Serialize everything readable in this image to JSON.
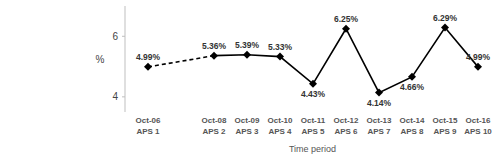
{
  "chart_data": {
    "type": "line",
    "x_label": "Time period",
    "y_label": "%",
    "categories": [
      "Oct-06\nAPS 1",
      null,
      "Oct-08\nAPS 2",
      "Oct-09\nAPS 3",
      "Oct-10\nAPS 4",
      "Oct-11\nAPS 5",
      "Oct-12\nAPS 6",
      "Oct-13\nAPS 7",
      "Oct-14\nAPS 8",
      "Oct-15\nAPS 9",
      "Oct-16\nAPS 10"
    ],
    "series": [
      {
        "values": [
          4.99,
          null,
          5.36,
          5.39,
          5.33,
          4.43,
          6.25,
          4.14,
          4.66,
          6.29,
          4.99
        ],
        "value_labels": [
          "4.99%",
          null,
          "5.36%",
          "5.39%",
          "5.33%",
          "4.43%",
          "6.25%",
          "4.14%",
          "4.66%",
          "6.29%",
          "4.99%"
        ],
        "color": "#000000",
        "marker": "diamond",
        "line_style": "solid"
      }
    ],
    "ylim": [
      3.5,
      7
    ],
    "yticks": [
      4,
      6
    ],
    "grid": false,
    "data_labels": true
  }
}
